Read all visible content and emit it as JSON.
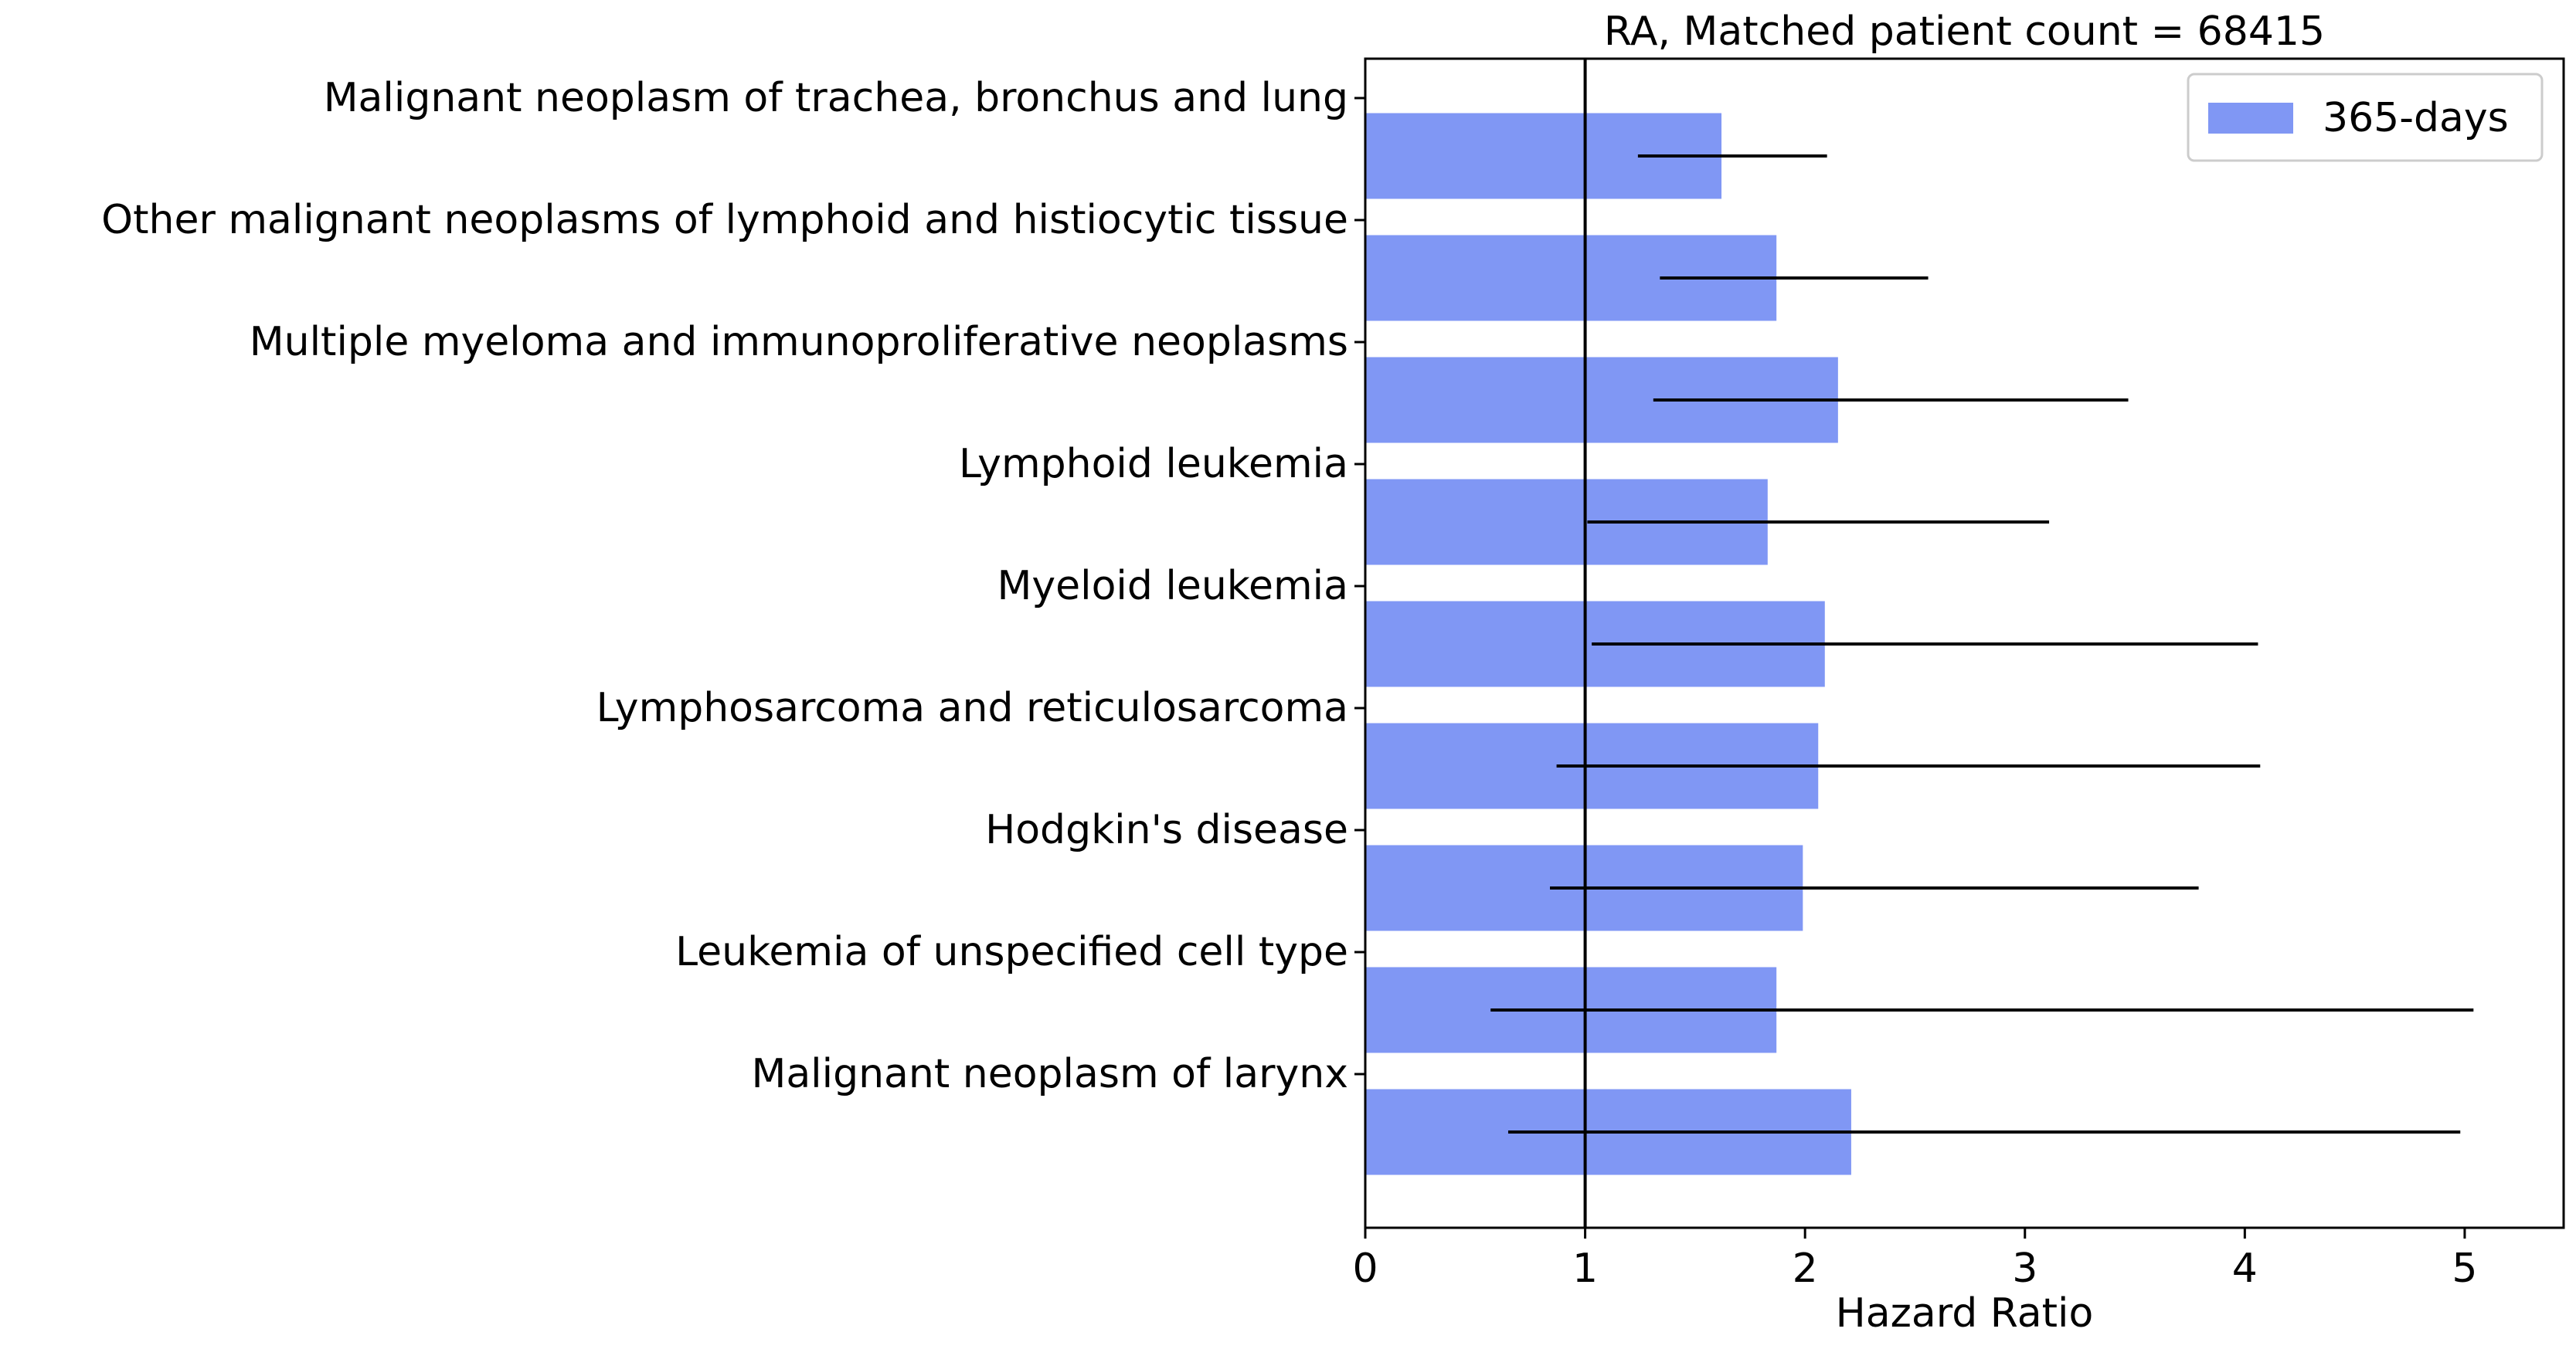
{
  "chart_data": {
    "type": "bar",
    "orientation": "horizontal",
    "title": "RA, Matched patient count = 68415",
    "xlabel": "Hazard Ratio",
    "ylabel": "",
    "xlim": [
      0,
      5.45
    ],
    "xticks": [
      0,
      1,
      2,
      3,
      4,
      5
    ],
    "reference_line_x": 1,
    "grid": false,
    "legend_position": "top-right",
    "bar_color": "#8097f4",
    "categories": [
      "Malignant neoplasm of trachea, bronchus and lung",
      "Other malignant neoplasms of lymphoid and histiocytic tissue",
      "Multiple myeloma and immunoproliferative neoplasms",
      "Lymphoid leukemia",
      "Myeloid leukemia",
      "Lymphosarcoma and reticulosarcoma",
      "Hodgkin's disease",
      "Leukemia of unspecified cell type",
      "Malignant neoplasm of larynx"
    ],
    "series": [
      {
        "name": "365-days",
        "values": [
          1.62,
          1.87,
          2.15,
          1.83,
          2.09,
          2.06,
          1.99,
          1.87,
          2.21
        ],
        "ci_low": [
          1.24,
          1.34,
          1.31,
          1.01,
          1.03,
          0.87,
          0.84,
          0.57,
          0.65
        ],
        "ci_high": [
          2.1,
          2.56,
          3.47,
          3.11,
          4.06,
          4.07,
          3.79,
          5.04,
          4.98
        ]
      }
    ]
  }
}
